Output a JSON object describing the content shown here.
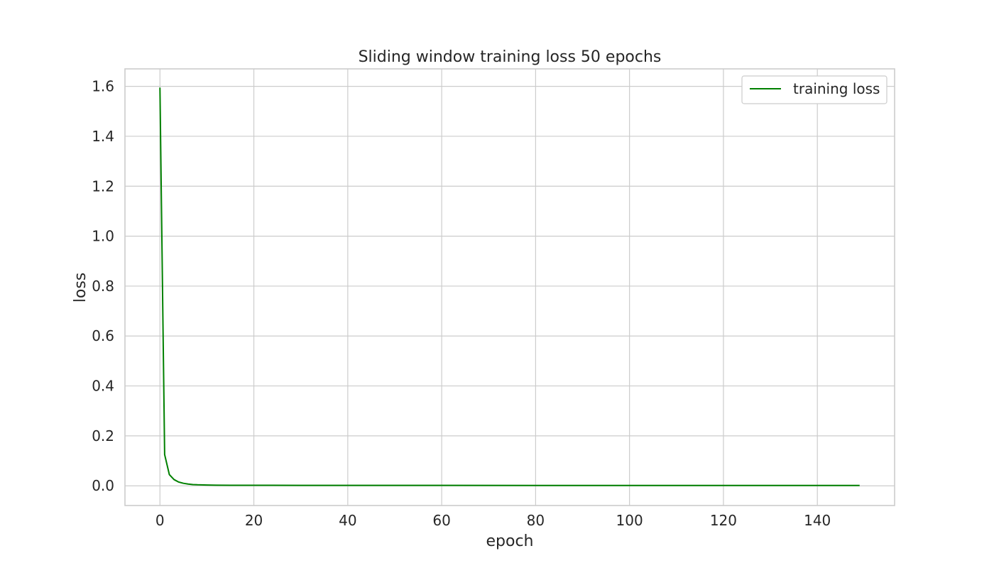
{
  "chart_data": {
    "type": "line",
    "title": "Sliding window training loss 50 epochs",
    "xlabel": "epoch",
    "ylabel": "loss",
    "xlim": [
      -7.45,
      156.45
    ],
    "ylim": [
      -0.079,
      1.67
    ],
    "xticks": [
      0,
      20,
      40,
      60,
      80,
      100,
      120,
      140
    ],
    "yticks": [
      0.0,
      0.2,
      0.4,
      0.6,
      0.8,
      1.0,
      1.2,
      1.4,
      1.6
    ],
    "grid": true,
    "legend": {
      "position": "top-right"
    },
    "series": [
      {
        "name": "training loss",
        "color": "#008000",
        "x": [
          0,
          1,
          2,
          3,
          4,
          5,
          6,
          7,
          8,
          10,
          12,
          15,
          20,
          30,
          40,
          60,
          80,
          100,
          120,
          140,
          149
        ],
        "y": [
          1.595,
          0.125,
          0.045,
          0.025,
          0.015,
          0.01,
          0.007,
          0.005,
          0.004,
          0.003,
          0.0025,
          0.002,
          0.002,
          0.0018,
          0.0017,
          0.0016,
          0.0015,
          0.0015,
          0.0015,
          0.0015,
          0.0015
        ]
      }
    ]
  }
}
